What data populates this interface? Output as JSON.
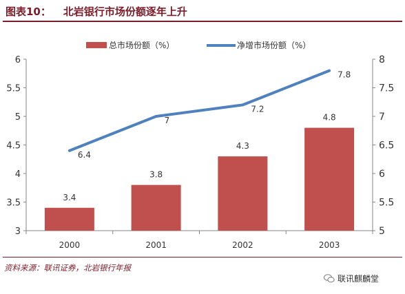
{
  "figure": {
    "label": "图表10：",
    "title": "北岩银行市场份额逐年上升",
    "source": "资料来源：联讯证券，北岩银行年报",
    "watermark": "联讯麒麟堂"
  },
  "colors": {
    "bar": "#c0504d",
    "line": "#4f81bd",
    "title": "#7a1c2a",
    "axis": "#868686",
    "text": "#333333"
  },
  "chart_data": {
    "type": "bar",
    "categories": [
      "2000",
      "2001",
      "2002",
      "2003"
    ],
    "series": [
      {
        "name": "总市场份额（%）",
        "type": "bar",
        "axis": "left",
        "values": [
          3.4,
          3.8,
          4.3,
          4.8
        ]
      },
      {
        "name": "净增市场份额（%）",
        "type": "line",
        "axis": "right",
        "values": [
          6.4,
          7,
          7.2,
          7.8
        ]
      }
    ],
    "y_left": {
      "min": 3,
      "max": 6,
      "ticks": [
        "3",
        "3.5",
        "4",
        "4.5",
        "5",
        "5.5",
        "6"
      ]
    },
    "y_right": {
      "min": 5,
      "max": 8,
      "ticks": [
        "5",
        "5.5",
        "6",
        "6.5",
        "7",
        "7.5",
        "8"
      ]
    },
    "bar_labels": [
      "3.4",
      "3.8",
      "4.3",
      "4.8"
    ],
    "line_labels": [
      "6.4",
      "7",
      "7.2",
      "7.8"
    ],
    "legend_position": "top",
    "grid": false
  }
}
